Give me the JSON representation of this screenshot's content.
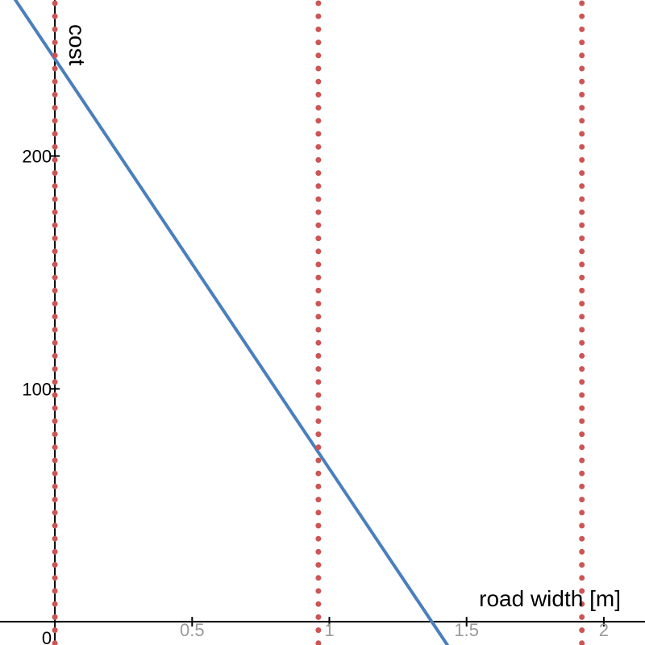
{
  "chart_data": {
    "type": "line",
    "xlabel": "road width [m]",
    "ylabel": "cost",
    "xlim": [
      -0.2,
      2.15
    ],
    "ylim": [
      -10,
      267
    ],
    "x_ticks": [
      {
        "value": 0.5,
        "label": "0.5"
      },
      {
        "value": 1,
        "label": "1"
      },
      {
        "value": 1.5,
        "label": "1.5"
      },
      {
        "value": 2,
        "label": "2"
      }
    ],
    "y_ticks": [
      {
        "value": 0,
        "label": "0"
      },
      {
        "value": 100,
        "label": "100"
      },
      {
        "value": 200,
        "label": "200"
      }
    ],
    "series": [
      {
        "kind": "line",
        "color": "#4a7fbd",
        "x": [
          -0.2,
          1.43
        ],
        "y": [
          276.9,
          -10
        ]
      }
    ],
    "vertical_lines": [
      {
        "x": 0,
        "color": "#cc5555",
        "style": "dotted"
      },
      {
        "x": 0.96,
        "color": "#cc5555",
        "style": "dotted"
      },
      {
        "x": 1.92,
        "color": "#cc5555",
        "style": "dotted"
      }
    ],
    "grid": false,
    "axis_color": "#000000",
    "x_tick_label_color": "#9a9a9a",
    "y_tick_label_color": "#000000"
  }
}
